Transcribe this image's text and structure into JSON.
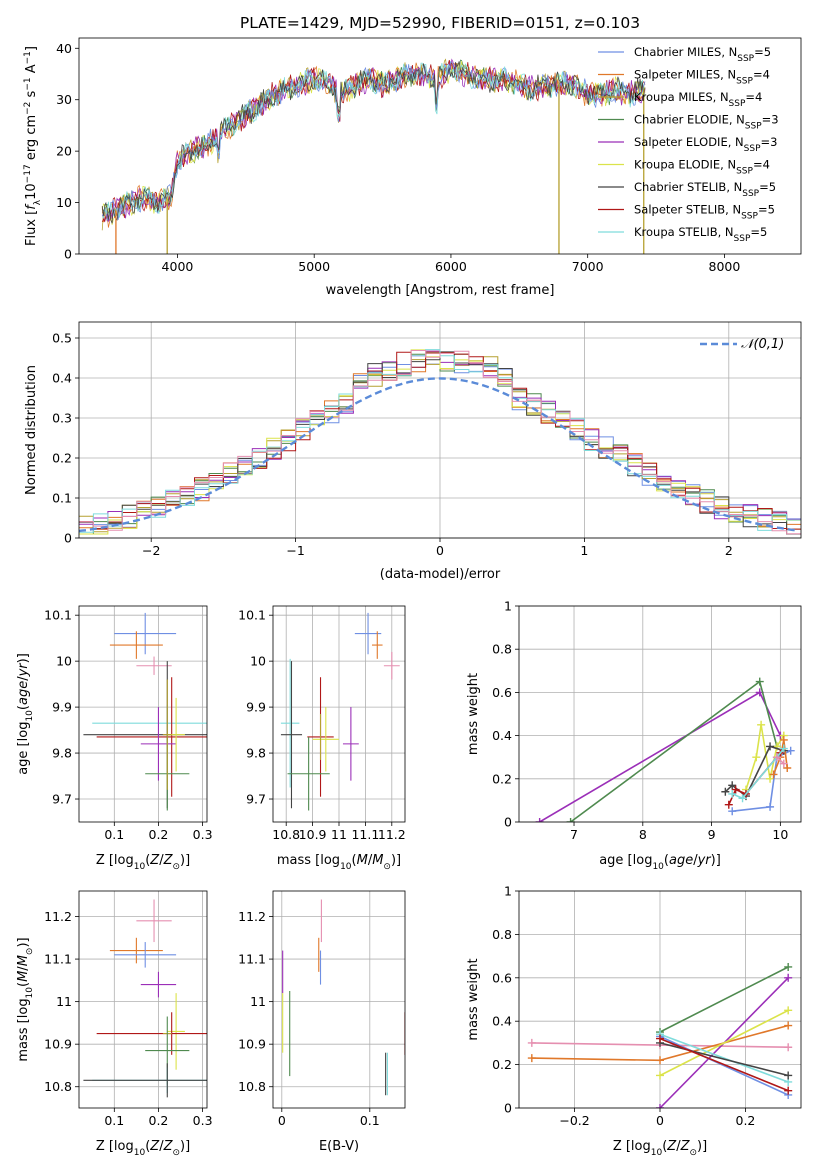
{
  "figure": {
    "title": "PLATE=1429, MJD=52990, FIBERID=0151, z=0.103"
  },
  "colors": {
    "Chabrier MILES": "#6f8fe3",
    "Salpeter MILES": "#e0782a",
    "Kroupa MILES": "#b5a030",
    "Chabrier ELODIE": "#4f8a4f",
    "Salpeter ELODIE": "#9b2fb8",
    "Kroupa ELODIE": "#dbe34a",
    "Chabrier STELIB": "#444444",
    "Salpeter STELIB": "#b01818",
    "Kroupa STELIB": "#7fdcdc",
    "normal_curve": "#5b8bd8",
    "grid": "#b0b0b0"
  },
  "chart_data": [
    {
      "id": "spectrum",
      "type": "line",
      "title": "PLATE=1429, MJD=52990, FIBERID=0151, z=0.103",
      "xlabel": "wavelength [Angstrom, rest frame]",
      "ylabel": "Flux [f_λ10^{-17} erg cm^{-2} s^{-1} A^{-1}]",
      "xlim": [
        3280,
        8560
      ],
      "ylim": [
        0,
        42
      ],
      "xticks": [
        4000,
        5000,
        6000,
        7000,
        8000
      ],
      "yticks": [
        0,
        10,
        20,
        30,
        40
      ],
      "grid": false,
      "legend_position": "right",
      "legend": [
        {
          "name": "Chabrier MILES",
          "nssp": 5
        },
        {
          "name": "Salpeter MILES",
          "nssp": 4
        },
        {
          "name": "Kroupa MILES",
          "nssp": 4
        },
        {
          "name": "Chabrier ELODIE",
          "nssp": 3
        },
        {
          "name": "Salpeter ELODIE",
          "nssp": 3
        },
        {
          "name": "Kroupa ELODIE",
          "nssp": 4
        },
        {
          "name": "Chabrier STELIB",
          "nssp": 5
        },
        {
          "name": "Salpeter STELIB",
          "nssp": 5
        },
        {
          "name": "Kroupa STELIB",
          "nssp": 5
        }
      ],
      "envelope": {
        "x": [
          3450,
          3550,
          3650,
          3750,
          3850,
          3950,
          4000,
          4100,
          4200,
          4300,
          4400,
          4500,
          4600,
          4700,
          4800,
          4900,
          5000,
          5100,
          5200,
          5300,
          5400,
          5500,
          5600,
          5700,
          5800,
          5900,
          6000,
          6100,
          6200,
          6300,
          6400,
          6500,
          6600,
          6700,
          6800,
          6900,
          7000,
          7100,
          7200,
          7300,
          7400
        ],
        "y": [
          7,
          8.5,
          10,
          11,
          10,
          11,
          18,
          20,
          21,
          23,
          25,
          27,
          29,
          31,
          32,
          33,
          34,
          33,
          31,
          33,
          34,
          33,
          34,
          35,
          35,
          34,
          36,
          35,
          34,
          34,
          34,
          33,
          32,
          33,
          33,
          33,
          31,
          31,
          32,
          31,
          32
        ]
      },
      "dips": [
        {
          "x": 3550,
          "y": 0
        },
        {
          "x": 3925,
          "y": 0
        },
        {
          "x": 6790,
          "y": 0
        },
        {
          "x": 7410,
          "y": 0
        }
      ]
    },
    {
      "id": "residuals",
      "type": "bar",
      "xlabel": "(data-model)/error",
      "ylabel": "Normed distribution",
      "xlim": [
        -2.5,
        2.5
      ],
      "ylim": [
        0,
        0.54
      ],
      "xticks": [
        -2,
        -1,
        0,
        1,
        2
      ],
      "yticks": [
        0.0,
        0.1,
        0.2,
        0.3,
        0.4,
        0.5
      ],
      "grid": true,
      "bin_width": 0.1,
      "legend_position": "upper right",
      "legend": [
        "𝒩(0,1)"
      ],
      "curve": {
        "type": "normal",
        "mean": 0,
        "sigma": 1
      }
    },
    {
      "id": "age_vs_Z",
      "type": "scatter",
      "xlabel": "Z [log10(Z/Z⊙)]",
      "ylabel": "age  [log10(age/yr)]",
      "xlim": [
        0.02,
        0.31
      ],
      "ylim": [
        9.65,
        10.12
      ],
      "xticks": [
        0.1,
        0.2,
        0.3
      ],
      "yticks": [
        9.7,
        9.8,
        9.9,
        10.0,
        10.1
      ],
      "grid": true,
      "points": [
        {
          "series": "Chabrier MILES",
          "x": 0.17,
          "y": 10.06,
          "xerr": 0.07,
          "yerr": 0.045
        },
        {
          "series": "Salpeter MILES",
          "x": 0.15,
          "y": 10.035,
          "xerr": 0.06,
          "yerr": 0.03
        },
        {
          "series": "Pink",
          "x": 0.19,
          "y": 9.99,
          "xerr": 0.04,
          "yerr": 0.02
        },
        {
          "series": "Kroupa STELIB",
          "x": 0.22,
          "y": 9.865,
          "xerr": 0.17,
          "yerr": 0.04
        },
        {
          "series": "Chabrier STELIB",
          "x": 0.22,
          "y": 9.84,
          "xerr": 0.19,
          "yerr": 0.16
        },
        {
          "series": "Salpeter STELIB",
          "x": 0.23,
          "y": 9.835,
          "xerr": 0.17,
          "yerr": 0.13
        },
        {
          "series": "Salpeter ELODIE",
          "x": 0.2,
          "y": 9.82,
          "xerr": 0.04,
          "yerr": 0.08
        },
        {
          "series": "Kroupa ELODIE",
          "x": 0.24,
          "y": 9.84,
          "xerr": 0.02,
          "yerr": 0.08
        },
        {
          "series": "Chabrier ELODIE",
          "x": 0.22,
          "y": 9.755,
          "xerr": 0.05,
          "yerr": 0.08
        },
        {
          "series": "Kroupa MILES",
          "x": 0.22,
          "y": 9.84,
          "xerr": 0.01,
          "yerr": 0.12
        }
      ]
    },
    {
      "id": "age_vs_mass",
      "type": "scatter",
      "xlabel": "mass [log10(M/M⊙)]",
      "xlim": [
        10.75,
        11.25
      ],
      "ylim": [
        9.65,
        10.12
      ],
      "xticks": [
        10.8,
        10.9,
        11.0,
        11.1,
        11.2
      ],
      "yticks": [
        9.7,
        9.8,
        9.9,
        10.0,
        10.1
      ],
      "grid": true,
      "points": [
        {
          "series": "Chabrier MILES",
          "x": 11.11,
          "y": 10.06,
          "xerr": 0.05,
          "yerr": 0.045
        },
        {
          "series": "Salpeter MILES",
          "x": 11.145,
          "y": 10.035,
          "xerr": 0.02,
          "yerr": 0.03
        },
        {
          "series": "Pink",
          "x": 11.2,
          "y": 9.99,
          "xerr": 0.03,
          "yerr": 0.03
        },
        {
          "series": "Kroupa STELIB",
          "x": 10.815,
          "y": 9.865,
          "xerr": 0.035,
          "yerr": 0.14
        },
        {
          "series": "Chabrier STELIB",
          "x": 10.82,
          "y": 9.84,
          "xerr": 0.04,
          "yerr": 0.16
        },
        {
          "series": "Salpeter STELIB",
          "x": 10.93,
          "y": 9.835,
          "xerr": 0.05,
          "yerr": 0.13
        },
        {
          "series": "Salpeter ELODIE",
          "x": 11.045,
          "y": 9.82,
          "xerr": 0.03,
          "yerr": 0.08
        },
        {
          "series": "Kroupa ELODIE",
          "x": 10.95,
          "y": 9.83,
          "xerr": 0.05,
          "yerr": 0.07
        },
        {
          "series": "Chabrier ELODIE",
          "x": 10.885,
          "y": 9.755,
          "xerr": 0.08,
          "yerr": 0.08
        },
        {
          "series": "Kroupa MILES",
          "x": 10.93,
          "y": 9.835,
          "xerr": 0.0,
          "yerr": 0.05
        }
      ]
    },
    {
      "id": "weight_vs_age",
      "type": "line",
      "xlabel": "age  [log10(age/yr)]",
      "ylabel": "mass weight",
      "xlim": [
        6.2,
        10.3
      ],
      "ylim": [
        0,
        1.0
      ],
      "xticks": [
        7,
        8,
        9,
        10
      ],
      "yticks": [
        0.0,
        0.2,
        0.4,
        0.6,
        0.8,
        1.0
      ],
      "grid": true,
      "series": [
        {
          "name": "Salpeter ELODIE",
          "x": [
            6.5,
            9.7,
            10.0
          ],
          "y": [
            0.0,
            0.6,
            0.4
          ]
        },
        {
          "name": "Chabrier ELODIE",
          "x": [
            6.95,
            9.7,
            9.95
          ],
          "y": [
            0.0,
            0.65,
            0.35
          ]
        },
        {
          "name": "Kroupa ELODIE",
          "x": [
            9.5,
            9.65,
            9.72,
            9.85,
            9.95,
            10.05
          ],
          "y": [
            0.15,
            0.3,
            0.45,
            0.2,
            0.35,
            0.4
          ]
        },
        {
          "name": "Chabrier MILES",
          "x": [
            9.3,
            9.85,
            9.95,
            10.15
          ],
          "y": [
            0.05,
            0.07,
            0.3,
            0.33
          ]
        },
        {
          "name": "Salpeter MILES",
          "x": [
            9.9,
            10.0,
            10.05,
            10.1
          ],
          "y": [
            0.22,
            0.3,
            0.38,
            0.25
          ]
        },
        {
          "name": "Chabrier STELIB",
          "x": [
            9.2,
            9.3,
            9.5,
            9.85,
            10.05
          ],
          "y": [
            0.14,
            0.17,
            0.12,
            0.35,
            0.33
          ]
        },
        {
          "name": "Salpeter STELIB",
          "x": [
            9.25,
            9.35,
            9.5,
            10.0
          ],
          "y": [
            0.08,
            0.15,
            0.13,
            0.32
          ]
        },
        {
          "name": "Kroupa STELIB",
          "x": [
            9.3,
            9.45,
            9.95,
            10.05
          ],
          "y": [
            0.13,
            0.11,
            0.3,
            0.34
          ]
        },
        {
          "name": "Pink",
          "x": [
            9.95,
            10.05
          ],
          "y": [
            0.3,
            0.27
          ]
        }
      ]
    },
    {
      "id": "mass_vs_Z",
      "type": "scatter",
      "xlabel": "Z [log10(Z/Z⊙)]",
      "ylabel": "mass [log10(M/M⊙)]",
      "xlim": [
        0.02,
        0.31
      ],
      "ylim": [
        10.75,
        11.26
      ],
      "xticks": [
        0.1,
        0.2,
        0.3
      ],
      "yticks": [
        10.8,
        10.9,
        11.0,
        11.1,
        11.2
      ],
      "grid": true,
      "points": [
        {
          "series": "Pink",
          "x": 0.19,
          "y": 11.19,
          "xerr": 0.04,
          "yerr": 0.05
        },
        {
          "series": "Salpeter MILES",
          "x": 0.15,
          "y": 11.12,
          "xerr": 0.06,
          "yerr": 0.03
        },
        {
          "series": "Chabrier MILES",
          "x": 0.17,
          "y": 11.11,
          "xerr": 0.07,
          "yerr": 0.03
        },
        {
          "series": "Salpeter ELODIE",
          "x": 0.2,
          "y": 11.04,
          "xerr": 0.04,
          "yerr": 0.03
        },
        {
          "series": "Kroupa ELODIE",
          "x": 0.24,
          "y": 10.93,
          "xerr": 0.02,
          "yerr": 0.09
        },
        {
          "series": "Salpeter STELIB",
          "x": 0.23,
          "y": 10.925,
          "xerr": 0.17,
          "yerr": 0.05
        },
        {
          "series": "Kroupa MILES",
          "x": 0.22,
          "y": 10.925,
          "xerr": 0.01,
          "yerr": 0.0
        },
        {
          "series": "Chabrier ELODIE",
          "x": 0.22,
          "y": 10.885,
          "xerr": 0.05,
          "yerr": 0.08
        },
        {
          "series": "Kroupa STELIB",
          "x": 0.22,
          "y": 10.815,
          "xerr": 0.17,
          "yerr": 0.03
        },
        {
          "series": "Chabrier STELIB",
          "x": 0.22,
          "y": 10.815,
          "xerr": 0.19,
          "yerr": 0.04
        }
      ]
    },
    {
      "id": "mass_vs_EBV",
      "type": "scatter",
      "xlabel": "E(B-V)",
      "xlim": [
        -0.01,
        0.14
      ],
      "ylim": [
        10.75,
        11.26
      ],
      "xticks": [
        0.0,
        0.1
      ],
      "yticks": [
        10.8,
        10.9,
        11.0,
        11.1,
        11.2
      ],
      "grid": true,
      "points": [
        {
          "series": "Pink",
          "x": 0.045,
          "y": 11.19,
          "yerr": 0.05
        },
        {
          "series": "Salpeter MILES",
          "x": 0.042,
          "y": 11.11,
          "yerr": 0.04
        },
        {
          "series": "Chabrier MILES",
          "x": 0.044,
          "y": 11.08,
          "yerr": 0.04
        },
        {
          "series": "Salpeter ELODIE",
          "x": 0.001,
          "y": 11.07,
          "yerr": 0.05
        },
        {
          "series": "Kroupa ELODIE",
          "x": 0.001,
          "y": 10.95,
          "yerr": 0.07
        },
        {
          "series": "Chabrier ELODIE",
          "x": 0.009,
          "y": 10.925,
          "yerr": 0.1
        },
        {
          "series": "Salpeter STELIB",
          "x": 0.14,
          "y": 10.925,
          "yerr": 0.05
        },
        {
          "series": "Chabrier STELIB",
          "x": 0.118,
          "y": 10.83,
          "yerr": 0.05
        },
        {
          "series": "Kroupa STELIB",
          "x": 0.12,
          "y": 10.83,
          "yerr": 0.05
        }
      ]
    },
    {
      "id": "weight_vs_Z",
      "type": "line",
      "xlabel": "Z [log10(Z/Z⊙)]",
      "ylabel": "mass weight",
      "xlim": [
        -0.33,
        0.33
      ],
      "ylim": [
        0,
        1.0
      ],
      "xticks": [
        -0.2,
        0.0,
        0.2
      ],
      "yticks": [
        0.0,
        0.2,
        0.4,
        0.6,
        0.8,
        1.0
      ],
      "grid": true,
      "series": [
        {
          "name": "Pink",
          "x": [
            -0.3,
            0.0,
            0.3
          ],
          "y": [
            0.3,
            0.29,
            0.28
          ]
        },
        {
          "name": "Salpeter MILES",
          "x": [
            -0.3,
            0.0,
            0.3
          ],
          "y": [
            0.23,
            0.22,
            0.38
          ]
        },
        {
          "name": "Chabrier ELODIE",
          "x": [
            0.0,
            0.3
          ],
          "y": [
            0.35,
            0.65
          ]
        },
        {
          "name": "Salpeter ELODIE",
          "x": [
            0.0,
            0.3
          ],
          "y": [
            0.0,
            0.6
          ]
        },
        {
          "name": "Kroupa ELODIE",
          "x": [
            0.0,
            0.3
          ],
          "y": [
            0.15,
            0.45
          ]
        },
        {
          "name": "Chabrier MILES",
          "x": [
            0.0,
            0.3
          ],
          "y": [
            0.33,
            0.06
          ]
        },
        {
          "name": "Kroupa STELIB",
          "x": [
            0.0,
            0.3
          ],
          "y": [
            0.34,
            0.12
          ]
        },
        {
          "name": "Chabrier STELIB",
          "x": [
            0.0,
            0.3
          ],
          "y": [
            0.3,
            0.15
          ]
        },
        {
          "name": "Salpeter STELIB",
          "x": [
            0.0,
            0.3
          ],
          "y": [
            0.32,
            0.08
          ]
        }
      ]
    }
  ]
}
